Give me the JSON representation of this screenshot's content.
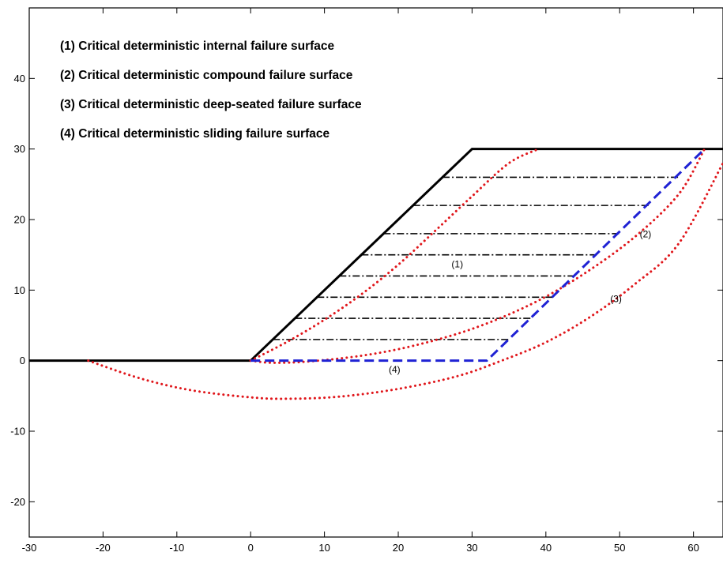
{
  "chart_data": {
    "type": "line",
    "xlim": [
      -30,
      64
    ],
    "ylim": [
      -25,
      50
    ],
    "xticks": [
      -30,
      -20,
      -10,
      0,
      10,
      20,
      30,
      40,
      50,
      60
    ],
    "yticks": [
      -20,
      -10,
      0,
      10,
      20,
      30,
      40
    ],
    "grid": false,
    "legend_placement": "top-left",
    "legend": [
      "(1) Critical deterministic internal failure surface",
      "(2) Critical deterministic compound failure surface",
      "(3) Critical deterministic deep-seated failure surface",
      "(4) Critical deterministic sliding failure surface"
    ],
    "geometry": {
      "ground": {
        "x": [
          -30,
          0,
          30,
          64
        ],
        "y": [
          0,
          0,
          30,
          30
        ],
        "color": "#000000"
      },
      "reinforcement_layers": [
        {
          "y": 3,
          "x": [
            3,
            35
          ]
        },
        {
          "y": 6,
          "x": [
            6,
            38
          ]
        },
        {
          "y": 9,
          "x": [
            9,
            41
          ]
        },
        {
          "y": 12,
          "x": [
            12,
            44
          ]
        },
        {
          "y": 15,
          "x": [
            15,
            47
          ]
        },
        {
          "y": 18,
          "x": [
            18,
            50
          ]
        },
        {
          "y": 22,
          "x": [
            22,
            54
          ]
        },
        {
          "y": 26,
          "x": [
            26,
            58
          ]
        }
      ]
    },
    "series": [
      {
        "x": [
          0,
          5,
          10,
          15,
          20,
          25,
          30,
          35,
          39
        ],
        "y": [
          0,
          2.7,
          5.8,
          9.4,
          13.6,
          18.4,
          23.3,
          28.0,
          30
        ],
        "color": "#e0161b",
        "style": "dotted"
      },
      {
        "x": [
          0,
          3,
          8,
          15,
          22,
          30,
          38,
          45,
          52,
          58,
          61.5
        ],
        "y": [
          0,
          -0.3,
          -0.1,
          0.7,
          2.1,
          4.5,
          8.0,
          12.2,
          17.5,
          23.6,
          30
        ],
        "color": "#e0161b",
        "style": "dotted"
      },
      {
        "x": [
          -22,
          -15,
          -8,
          0,
          5,
          12,
          20,
          28,
          34,
          40,
          46,
          52,
          58,
          64
        ],
        "y": [
          0,
          -2.5,
          -4.2,
          -5.2,
          -5.4,
          -5.1,
          -4.0,
          -2.2,
          0,
          2.6,
          6.2,
          10.8,
          16.6,
          28.0
        ],
        "color": "#e0161b",
        "style": "dotted"
      },
      {
        "x": [
          0,
          32,
          61.5
        ],
        "y": [
          0,
          0,
          30
        ],
        "color": "#1f22d4",
        "style": "dashed"
      }
    ],
    "annotations": [
      {
        "text": "(1)",
        "x": 28,
        "y": 13.2
      },
      {
        "text": "(2)",
        "x": 53.5,
        "y": 17.5
      },
      {
        "text": "(3)",
        "x": 49.5,
        "y": 8.3
      },
      {
        "text": "(4)",
        "x": 19.5,
        "y": -1.7
      }
    ]
  }
}
